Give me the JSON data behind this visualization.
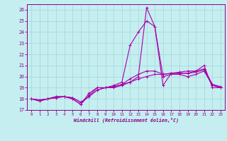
{
  "xlabel": "Windchill (Refroidissement éolien,°C)",
  "xlim": [
    -0.5,
    23.5
  ],
  "ylim": [
    17,
    26.5
  ],
  "yticks": [
    17,
    18,
    19,
    20,
    21,
    22,
    23,
    24,
    25,
    26
  ],
  "xticks": [
    0,
    1,
    2,
    3,
    4,
    5,
    6,
    7,
    8,
    9,
    10,
    11,
    12,
    13,
    14,
    15,
    16,
    17,
    18,
    19,
    20,
    21,
    22,
    23
  ],
  "background_color": "#c5eef0",
  "grid_color": "#aad8da",
  "line_color": "#aa00aa",
  "tick_color": "#880088",
  "lines": [
    {
      "x": [
        0,
        1,
        2,
        3,
        4,
        5,
        6,
        7,
        8,
        9,
        10,
        11,
        12,
        13,
        14,
        15,
        16,
        17,
        18,
        19,
        20,
        21,
        22,
        23
      ],
      "y": [
        18.0,
        17.8,
        18.0,
        18.2,
        18.2,
        18.0,
        17.5,
        18.5,
        19.0,
        19.0,
        19.0,
        19.2,
        19.5,
        20.0,
        26.2,
        24.5,
        19.2,
        20.3,
        20.3,
        20.3,
        20.5,
        21.0,
        19.0,
        19.0
      ]
    },
    {
      "x": [
        0,
        1,
        2,
        3,
        4,
        5,
        6,
        7,
        8,
        9,
        10,
        11,
        12,
        13,
        14,
        15,
        16,
        17,
        18,
        19,
        20,
        21,
        22,
        23
      ],
      "y": [
        18.0,
        17.8,
        18.0,
        18.2,
        18.2,
        18.0,
        17.5,
        18.3,
        19.0,
        19.0,
        19.2,
        19.5,
        22.8,
        24.0,
        25.0,
        24.5,
        20.0,
        20.2,
        20.2,
        20.0,
        20.2,
        20.5,
        19.2,
        19.0
      ]
    },
    {
      "x": [
        0,
        1,
        2,
        3,
        4,
        5,
        6,
        7,
        8,
        9,
        10,
        11,
        12,
        13,
        14,
        15,
        16,
        17,
        18,
        19,
        20,
        21,
        22,
        23
      ],
      "y": [
        18.0,
        17.9,
        18.0,
        18.1,
        18.2,
        18.1,
        17.7,
        18.2,
        18.8,
        19.0,
        19.1,
        19.3,
        19.8,
        20.2,
        20.5,
        20.5,
        20.2,
        20.3,
        20.3,
        20.3,
        20.4,
        20.6,
        19.3,
        19.0
      ]
    },
    {
      "x": [
        0,
        1,
        2,
        3,
        4,
        5,
        6,
        7,
        8,
        9,
        10,
        11,
        12,
        13,
        14,
        15,
        16,
        17,
        18,
        19,
        20,
        21,
        22,
        23
      ],
      "y": [
        18.0,
        17.9,
        18.0,
        18.1,
        18.2,
        18.1,
        17.7,
        18.2,
        18.8,
        19.0,
        19.1,
        19.3,
        19.5,
        19.8,
        20.0,
        20.2,
        20.2,
        20.3,
        20.4,
        20.5,
        20.5,
        20.7,
        19.3,
        19.1
      ]
    }
  ]
}
